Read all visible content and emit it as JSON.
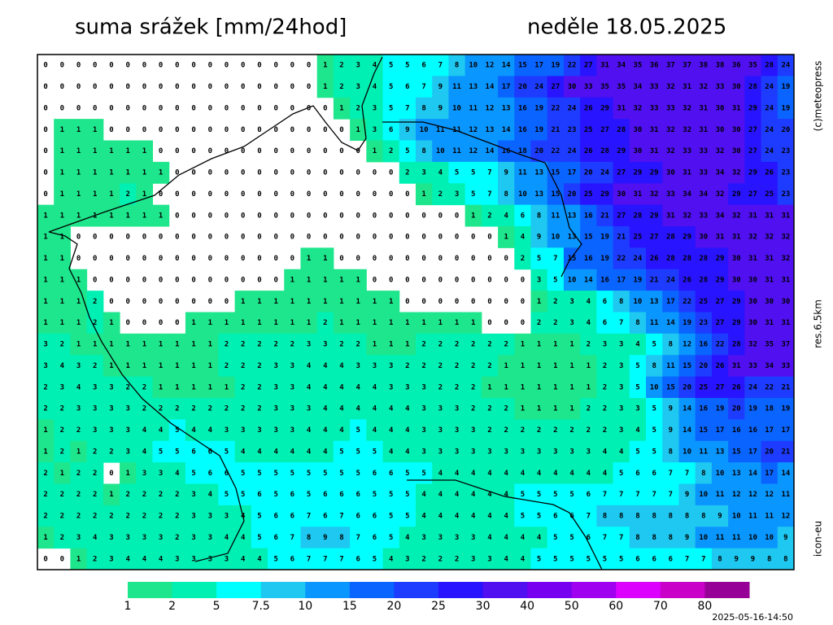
{
  "header": {
    "title": "suma srážek [mm/24hod]",
    "date": "neděle 18.05.2025"
  },
  "labels": {
    "copyright": "(c)meteopress",
    "resolution": "res.6.5km",
    "model": "icon-eu",
    "timestamp": "2025-05-16-14:50"
  },
  "legend": {
    "bounds": [
      1,
      2,
      5,
      7.5,
      10,
      15,
      20,
      25,
      30,
      40,
      50,
      60,
      70,
      80
    ],
    "colors": [
      "#1ee68c",
      "#00f0b4",
      "#00ffff",
      "#1ec8f0",
      "#0a96ff",
      "#0a64ff",
      "#1e3cff",
      "#2814ff",
      "#5010f0",
      "#7800f0",
      "#a000f0",
      "#dc00ff",
      "#c800c8",
      "#960096"
    ]
  },
  "grid": {
    "rows": [
      [
        0,
        0,
        0,
        0,
        0,
        0,
        0,
        0,
        0,
        0,
        0,
        0,
        0,
        0,
        0,
        0,
        0,
        1,
        2,
        3,
        4,
        5,
        5,
        6,
        7,
        8,
        10,
        12,
        14,
        15,
        17,
        19,
        22,
        27,
        31,
        34,
        35,
        36,
        37,
        37,
        38,
        38,
        36,
        35,
        28,
        24
      ],
      [
        0,
        0,
        0,
        0,
        0,
        0,
        0,
        0,
        0,
        0,
        0,
        0,
        0,
        0,
        0,
        0,
        0,
        1,
        2,
        3,
        4,
        5,
        6,
        7,
        9,
        11,
        13,
        14,
        17,
        20,
        24,
        27,
        30,
        33,
        35,
        35,
        34,
        33,
        32,
        31,
        32,
        33,
        30,
        28,
        24,
        19
      ],
      [
        0,
        0,
        0,
        0,
        0,
        0,
        0,
        0,
        0,
        0,
        0,
        0,
        0,
        0,
        0,
        0,
        0,
        0,
        1,
        2,
        3,
        5,
        7,
        8,
        9,
        10,
        11,
        12,
        13,
        16,
        19,
        22,
        24,
        26,
        29,
        31,
        32,
        33,
        33,
        32,
        31,
        30,
        31,
        29,
        24,
        19
      ],
      [
        0,
        1,
        1,
        1,
        0,
        0,
        0,
        0,
        0,
        0,
        0,
        0,
        0,
        0,
        0,
        0,
        0,
        0,
        0,
        1,
        3,
        6,
        9,
        10,
        11,
        11,
        12,
        13,
        14,
        16,
        19,
        21,
        23,
        25,
        27,
        28,
        30,
        31,
        32,
        32,
        31,
        30,
        30,
        27,
        24,
        20
      ],
      [
        0,
        1,
        1,
        1,
        1,
        1,
        1,
        0,
        0,
        0,
        0,
        0,
        0,
        0,
        0,
        0,
        0,
        0,
        0,
        0,
        1,
        2,
        5,
        8,
        10,
        11,
        12,
        14,
        16,
        18,
        20,
        22,
        24,
        26,
        28,
        29,
        30,
        31,
        32,
        33,
        33,
        32,
        30,
        27,
        24,
        23
      ],
      [
        0,
        1,
        1,
        1,
        1,
        1,
        1,
        1,
        0,
        0,
        0,
        0,
        0,
        0,
        0,
        0,
        0,
        0,
        0,
        0,
        0,
        0,
        2,
        3,
        4,
        5,
        5,
        7,
        9,
        11,
        13,
        15,
        17,
        20,
        24,
        27,
        29,
        29,
        30,
        31,
        33,
        34,
        32,
        29,
        26,
        23
      ],
      [
        0,
        1,
        1,
        1,
        1,
        2,
        1,
        0,
        0,
        0,
        0,
        0,
        0,
        0,
        0,
        0,
        0,
        0,
        0,
        0,
        0,
        0,
        0,
        1,
        2,
        3,
        5,
        7,
        8,
        10,
        13,
        15,
        20,
        25,
        29,
        30,
        31,
        32,
        33,
        34,
        34,
        32,
        29,
        27,
        25,
        23
      ],
      [
        1,
        1,
        1,
        1,
        1,
        1,
        1,
        1,
        0,
        0,
        0,
        0,
        0,
        0,
        0,
        0,
        0,
        0,
        0,
        0,
        0,
        0,
        0,
        0,
        0,
        0,
        1,
        2,
        4,
        6,
        8,
        11,
        13,
        16,
        21,
        27,
        28,
        29,
        31,
        32,
        33,
        34,
        32,
        31,
        31,
        31
      ],
      [
        1,
        1,
        0,
        0,
        0,
        0,
        0,
        0,
        0,
        0,
        0,
        0,
        0,
        0,
        0,
        0,
        0,
        0,
        0,
        0,
        0,
        0,
        0,
        0,
        0,
        0,
        0,
        0,
        1,
        4,
        9,
        10,
        13,
        15,
        19,
        21,
        25,
        27,
        28,
        29,
        30,
        31,
        31,
        32,
        32,
        32
      ],
      [
        1,
        1,
        0,
        0,
        0,
        0,
        0,
        0,
        0,
        0,
        0,
        0,
        0,
        0,
        0,
        0,
        1,
        1,
        0,
        0,
        0,
        0,
        0,
        0,
        0,
        0,
        0,
        0,
        0,
        2,
        5,
        7,
        15,
        16,
        19,
        22,
        24,
        26,
        28,
        28,
        28,
        29,
        30,
        31,
        31,
        32
      ],
      [
        1,
        1,
        1,
        0,
        0,
        0,
        0,
        0,
        0,
        0,
        0,
        0,
        0,
        0,
        0,
        1,
        1,
        1,
        1,
        1,
        0,
        0,
        0,
        0,
        0,
        0,
        0,
        0,
        0,
        0,
        3,
        5,
        10,
        14,
        16,
        17,
        19,
        21,
        24,
        26,
        28,
        29,
        30,
        30,
        31,
        31
      ],
      [
        1,
        1,
        1,
        2,
        0,
        0,
        0,
        0,
        0,
        0,
        0,
        0,
        1,
        1,
        1,
        1,
        1,
        1,
        1,
        1,
        1,
        1,
        0,
        0,
        0,
        0,
        0,
        0,
        0,
        0,
        1,
        2,
        3,
        4,
        6,
        8,
        10,
        13,
        17,
        22,
        25,
        27,
        29,
        30,
        30,
        30
      ],
      [
        1,
        1,
        1,
        2,
        1,
        0,
        0,
        0,
        0,
        1,
        1,
        1,
        1,
        1,
        1,
        1,
        1,
        2,
        1,
        1,
        1,
        1,
        1,
        1,
        1,
        1,
        1,
        0,
        0,
        0,
        2,
        2,
        3,
        4,
        6,
        7,
        8,
        11,
        14,
        19,
        23,
        27,
        29,
        30,
        31,
        31
      ],
      [
        3,
        2,
        1,
        1,
        1,
        1,
        1,
        1,
        1,
        1,
        1,
        2,
        2,
        2,
        2,
        2,
        3,
        3,
        2,
        2,
        1,
        1,
        1,
        2,
        2,
        2,
        2,
        2,
        2,
        1,
        1,
        1,
        1,
        2,
        3,
        3,
        4,
        5,
        8,
        12,
        16,
        22,
        28,
        32,
        35,
        37
      ],
      [
        3,
        4,
        3,
        2,
        1,
        1,
        1,
        1,
        1,
        1,
        1,
        2,
        2,
        2,
        3,
        3,
        4,
        4,
        4,
        3,
        3,
        3,
        2,
        2,
        2,
        2,
        2,
        2,
        1,
        1,
        1,
        1,
        1,
        1,
        2,
        3,
        5,
        8,
        11,
        15,
        20,
        26,
        31,
        33,
        34,
        33
      ],
      [
        2,
        3,
        4,
        3,
        3,
        2,
        2,
        1,
        1,
        1,
        1,
        1,
        2,
        2,
        3,
        3,
        4,
        4,
        4,
        4,
        4,
        3,
        3,
        3,
        2,
        2,
        2,
        1,
        1,
        1,
        1,
        1,
        1,
        1,
        2,
        3,
        5,
        10,
        15,
        20,
        25,
        27,
        26,
        24,
        22,
        21
      ],
      [
        2,
        2,
        3,
        3,
        3,
        3,
        2,
        2,
        2,
        2,
        2,
        2,
        2,
        2,
        3,
        3,
        3,
        4,
        4,
        4,
        4,
        4,
        4,
        3,
        3,
        3,
        2,
        2,
        2,
        1,
        1,
        1,
        1,
        2,
        2,
        3,
        3,
        5,
        9,
        14,
        16,
        19,
        20,
        19,
        18,
        19
      ],
      [
        1,
        2,
        2,
        3,
        3,
        3,
        4,
        4,
        5,
        4,
        4,
        3,
        3,
        3,
        3,
        3,
        4,
        4,
        4,
        5,
        4,
        4,
        4,
        3,
        3,
        3,
        3,
        2,
        2,
        2,
        2,
        2,
        2,
        2,
        2,
        3,
        4,
        5,
        9,
        14,
        15,
        17,
        16,
        16,
        17,
        17
      ],
      [
        1,
        2,
        1,
        2,
        2,
        3,
        4,
        5,
        5,
        6,
        6,
        5,
        4,
        4,
        4,
        4,
        4,
        4,
        5,
        5,
        5,
        4,
        4,
        3,
        3,
        3,
        3,
        3,
        3,
        3,
        3,
        3,
        3,
        3,
        4,
        4,
        5,
        5,
        8,
        10,
        11,
        13,
        15,
        17,
        20,
        21
      ],
      [
        2,
        1,
        2,
        2,
        0,
        1,
        3,
        3,
        4,
        5,
        6,
        6,
        5,
        5,
        5,
        5,
        5,
        5,
        5,
        5,
        6,
        6,
        5,
        5,
        4,
        4,
        4,
        4,
        4,
        4,
        4,
        4,
        4,
        4,
        4,
        5,
        6,
        6,
        7,
        7,
        8,
        10,
        13,
        14,
        17,
        14
      ],
      [
        2,
        2,
        2,
        2,
        1,
        2,
        2,
        2,
        2,
        3,
        4,
        5,
        5,
        6,
        5,
        6,
        5,
        6,
        6,
        6,
        5,
        5,
        5,
        4,
        4,
        4,
        4,
        4,
        4,
        5,
        5,
        5,
        5,
        6,
        7,
        7,
        7,
        7,
        7,
        9,
        10,
        11,
        12,
        12,
        12,
        11
      ],
      [
        2,
        2,
        2,
        2,
        2,
        2,
        2,
        2,
        2,
        3,
        3,
        3,
        4,
        5,
        6,
        6,
        7,
        6,
        7,
        6,
        6,
        5,
        5,
        4,
        4,
        4,
        4,
        4,
        4,
        5,
        5,
        6,
        6,
        7,
        8,
        8,
        8,
        8,
        8,
        8,
        8,
        9,
        10,
        11,
        11,
        12
      ],
      [
        1,
        2,
        3,
        4,
        3,
        3,
        3,
        3,
        2,
        3,
        3,
        4,
        4,
        5,
        6,
        7,
        8,
        9,
        8,
        7,
        6,
        5,
        4,
        3,
        3,
        3,
        3,
        4,
        4,
        4,
        4,
        5,
        5,
        6,
        7,
        7,
        8,
        8,
        8,
        9,
        10,
        11,
        11,
        10,
        10,
        9
      ],
      [
        0,
        0,
        1,
        2,
        3,
        4,
        4,
        4,
        3,
        3,
        3,
        3,
        4,
        4,
        5,
        6,
        7,
        7,
        7,
        6,
        5,
        4,
        3,
        2,
        2,
        2,
        3,
        3,
        4,
        4,
        5,
        5,
        5,
        5,
        5,
        5,
        6,
        6,
        6,
        7,
        7,
        8,
        9,
        9,
        8,
        8
      ]
    ]
  }
}
